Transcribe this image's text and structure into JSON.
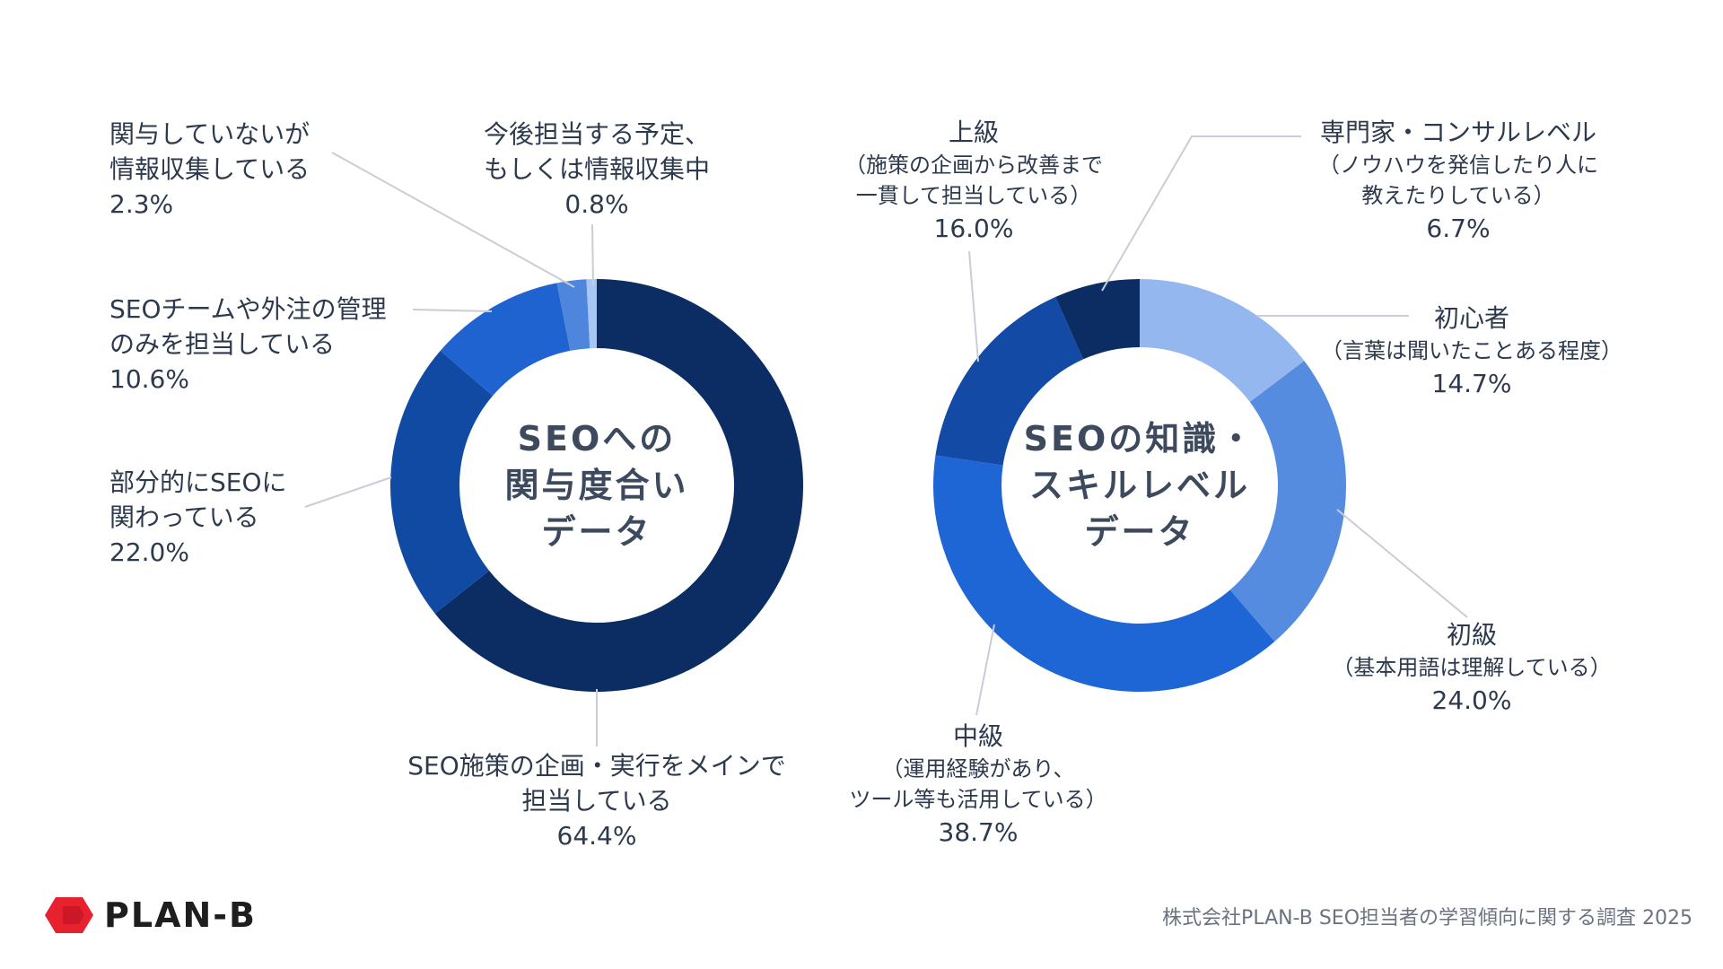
{
  "chart_data": [
    {
      "type": "pie",
      "donut": true,
      "center_label": [
        "SEOへの",
        "関与度合い",
        "データ"
      ],
      "slices": [
        {
          "lines": [
            "SEO施策の企画・実行をメインで",
            "担当している"
          ],
          "value": 64.4,
          "value_label": "64.4%",
          "color": "#0b2d63"
        },
        {
          "lines": [
            "部分的にSEOに",
            "関わっている"
          ],
          "value": 22.0,
          "value_label": "22.0%",
          "color": "#114aa3"
        },
        {
          "lines": [
            "SEOチームや外注の管理",
            "のみを担当している"
          ],
          "value": 10.6,
          "value_label": "10.6%",
          "color": "#1f63d1"
        },
        {
          "lines": [
            "関与していないが",
            "情報収集している"
          ],
          "value": 2.3,
          "value_label": "2.3%",
          "color": "#4d86dc"
        },
        {
          "lines": [
            "今後担当する予定、",
            "もしくは情報収集中"
          ],
          "value": 0.8,
          "value_label": "0.8%",
          "color": "#a8c6f4"
        }
      ]
    },
    {
      "type": "pie",
      "donut": true,
      "center_label": [
        "SEOの知識・",
        "スキルレベル",
        "データ"
      ],
      "slices": [
        {
          "lines": [
            "初心者"
          ],
          "sub": [
            "（言葉は聞いたことある程度）"
          ],
          "value": 14.7,
          "value_label": "14.7%",
          "color": "#94b7ef"
        },
        {
          "lines": [
            "初級"
          ],
          "sub": [
            "（基本用語は理解している）"
          ],
          "value": 24.0,
          "value_label": "24.0%",
          "color": "#558ce0"
        },
        {
          "lines": [
            "中級"
          ],
          "sub": [
            "（運用経験があり、",
            "ツール等も活用している）"
          ],
          "value": 38.7,
          "value_label": "38.7%",
          "color": "#1e66d6"
        },
        {
          "lines": [
            "上級"
          ],
          "sub": [
            "（施策の企画から改善まで",
            "一貫して担当している）"
          ],
          "value": 16.0,
          "value_label": "16.0%",
          "color": "#124aa5"
        },
        {
          "lines": [
            "専門家・コンサルレベル"
          ],
          "sub": [
            "（ノウハウを発信したり人に",
            "教えたりしている）"
          ],
          "value": 6.7,
          "value_label": "6.7%",
          "color": "#0b2d63"
        }
      ]
    }
  ],
  "footer": {
    "logo_text": "PLAN-B",
    "source": "株式会社PLAN-B  SEO担当者の学習傾向に関する調査 2025"
  },
  "colors": {
    "logo_red": "#e8212f",
    "text": "#2d3a4e",
    "leader_line": "#c9cdd6"
  }
}
